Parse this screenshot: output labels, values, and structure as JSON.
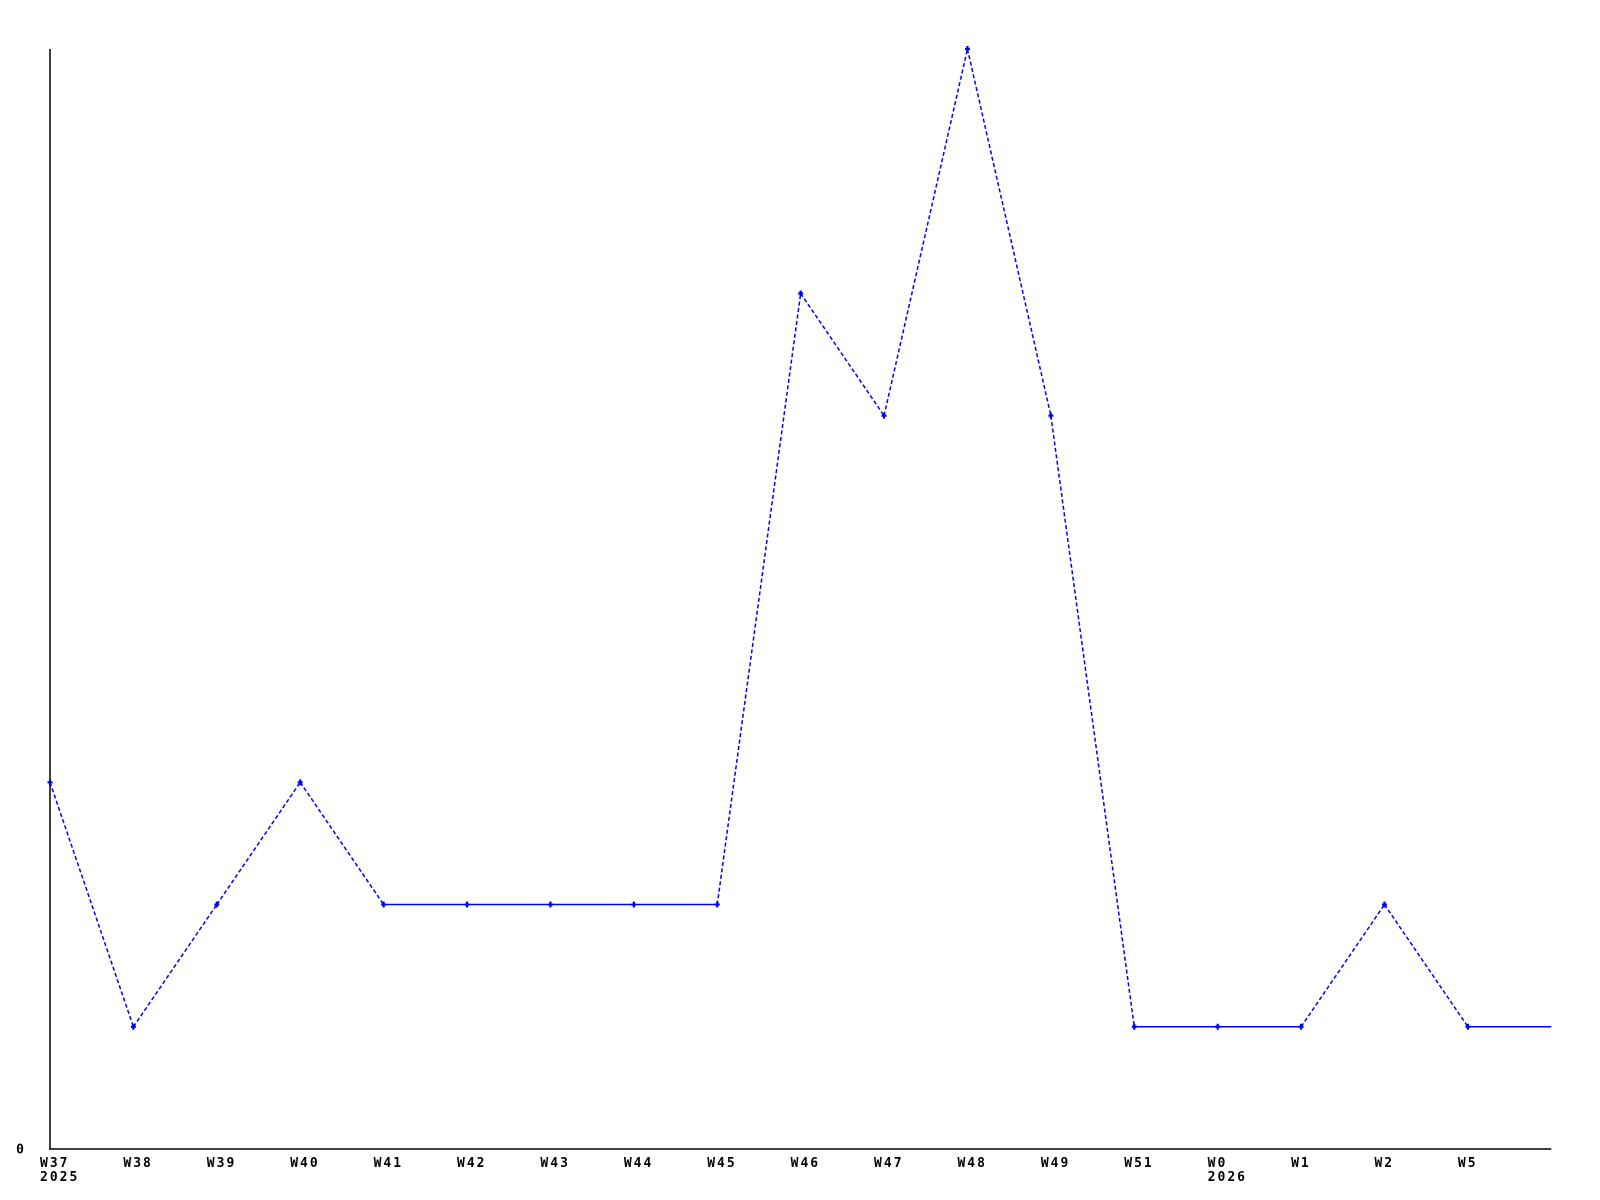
{
  "chart_data": {
    "type": "line",
    "title": "",
    "xlabel": "",
    "ylabel": "",
    "categories": [
      "W37",
      "W38",
      "W39",
      "W40",
      "W41",
      "W42",
      "W43",
      "W44",
      "W45",
      "W46",
      "W47",
      "W48",
      "W49",
      "W51",
      "W0",
      "W1",
      "W2",
      "W5",
      ""
    ],
    "values": [
      3,
      1,
      2,
      3,
      2,
      2,
      2,
      2,
      2,
      7,
      6,
      9,
      6,
      1,
      1,
      1,
      2,
      1,
      1
    ],
    "year_labels": [
      {
        "category_index": 0,
        "label": "2025"
      },
      {
        "category_index": 14,
        "label": "2026"
      }
    ],
    "y_axis": {
      "range": [
        0,
        9
      ],
      "ticks": [
        {
          "value": 0,
          "label": "0"
        }
      ]
    },
    "grid": false,
    "legend": null,
    "marker_style": "plus",
    "marker_on_last_point": false,
    "line_style": {
      "horizontal_segments": "solid",
      "sloped_segments": "dashed"
    },
    "colors": {
      "line": "#0000ff",
      "marker": "#0000ff",
      "axis": "#000000",
      "text": "#000000",
      "background": "#ffffff"
    }
  }
}
